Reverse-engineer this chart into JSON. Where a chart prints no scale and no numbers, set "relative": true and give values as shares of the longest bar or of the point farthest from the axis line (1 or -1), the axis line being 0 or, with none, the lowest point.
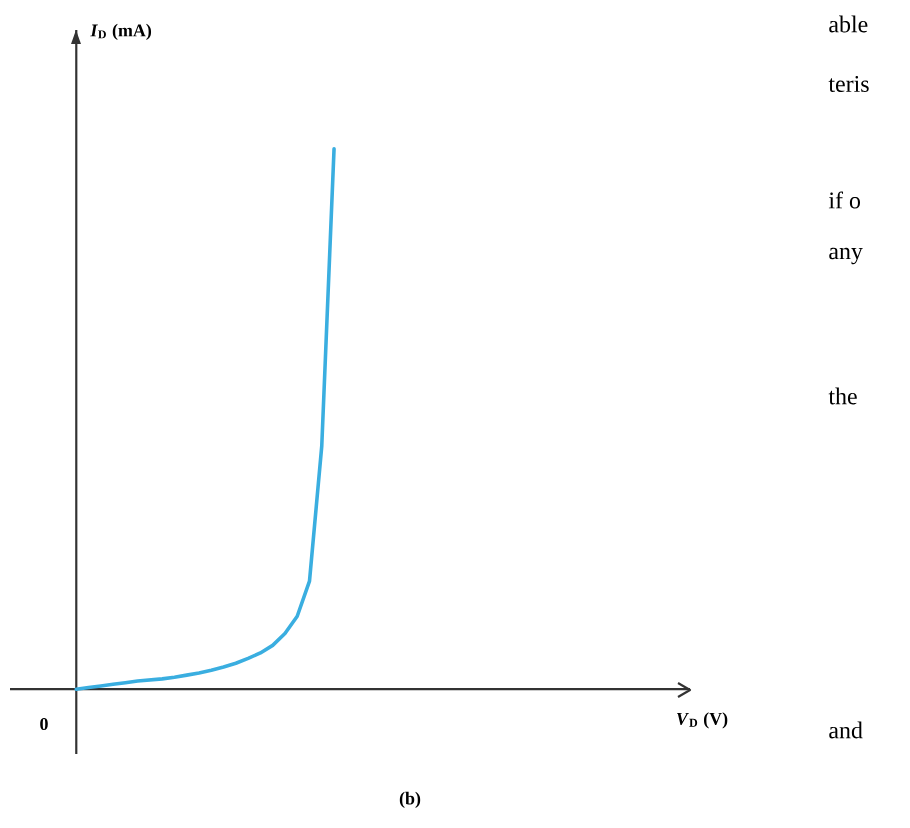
{
  "chart_data": {
    "type": "line",
    "relative": true,
    "xlabel": "*V*$_{D}$ (V)",
    "annotations": [
      "(b)",
      "able",
      "teris",
      "if o",
      "any",
      "the",
      "and",
      "0",
      "*I*$_{D}$ (mA)"
    ],
    "categories": [
      null,
      null,
      null,
      null,
      null,
      null,
      null,
      null,
      null,
      null,
      null,
      null,
      null,
      null,
      null,
      null,
      null,
      null,
      null,
      null,
      null,
      null,
      null,
      null,
      null,
      null,
      null,
      null,
      null,
      null,
      null,
      null,
      null,
      null,
      null,
      null,
      null,
      null,
      null,
      null,
      null,
      null,
      null,
      null,
      null,
      null,
      null,
      null,
      null,
      null,
      null
    ],
    "series": [
      {
        "color": "#3aaee0",
        "values": [
          0,
          0.003,
          0.006,
          0.009,
          0.012,
          0.015,
          0.017,
          0.019,
          0.022,
          0.026,
          0.03,
          0.035,
          0.041,
          0.048,
          0.057,
          0.067,
          0.081,
          0.103,
          0.135,
          0.2,
          0.45,
          1,
          null,
          null,
          null,
          null,
          null,
          null,
          null,
          null,
          null,
          null,
          null,
          null,
          null,
          null,
          null,
          null,
          null,
          null,
          null,
          null,
          null,
          null,
          null,
          null,
          null,
          null,
          null,
          null,
          null
        ]
      }
    ],
    "line_style": "solid",
    "marker": "none"
  }
}
